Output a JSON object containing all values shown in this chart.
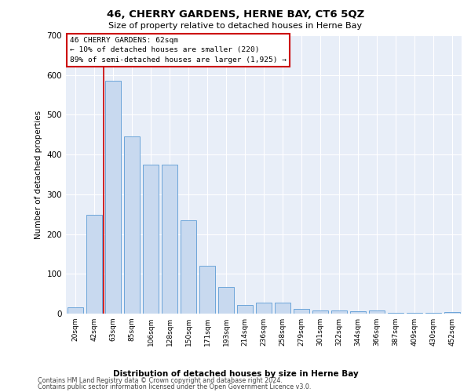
{
  "title": "46, CHERRY GARDENS, HERNE BAY, CT6 5QZ",
  "subtitle": "Size of property relative to detached houses in Herne Bay",
  "xlabel": "Distribution of detached houses by size in Herne Bay",
  "ylabel": "Number of detached properties",
  "footer_line1": "Contains HM Land Registry data © Crown copyright and database right 2024.",
  "footer_line2": "Contains public sector information licensed under the Open Government Licence v3.0.",
  "annotation_title": "46 CHERRY GARDENS: 62sqm",
  "annotation_line1": "← 10% of detached houses are smaller (220)",
  "annotation_line2": "89% of semi-detached houses are larger (1,925) →",
  "bar_color": "#c8d9ef",
  "bar_edge_color": "#5b9bd5",
  "vline_color": "#cc0000",
  "background_color": "#e8eef8",
  "categories": [
    "20sqm",
    "42sqm",
    "63sqm",
    "85sqm",
    "106sqm",
    "128sqm",
    "150sqm",
    "171sqm",
    "193sqm",
    "214sqm",
    "236sqm",
    "258sqm",
    "279sqm",
    "301sqm",
    "322sqm",
    "344sqm",
    "366sqm",
    "387sqm",
    "409sqm",
    "430sqm",
    "452sqm"
  ],
  "values": [
    15,
    248,
    585,
    445,
    375,
    375,
    235,
    120,
    67,
    22,
    28,
    28,
    11,
    8,
    8,
    6,
    7,
    2,
    1,
    1,
    3
  ],
  "ylim": [
    0,
    700
  ],
  "yticks": [
    0,
    100,
    200,
    300,
    400,
    500,
    600,
    700
  ],
  "vline_x_index": 2
}
